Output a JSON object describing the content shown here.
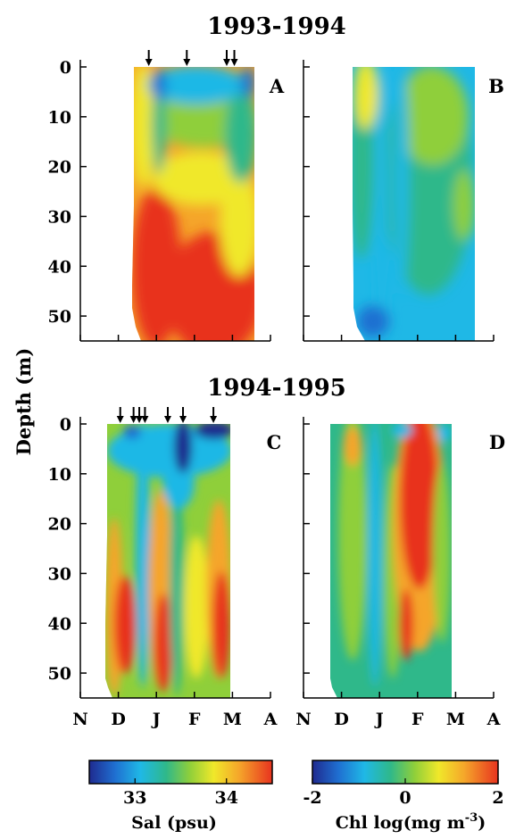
{
  "chart_data": [
    {
      "type": "heatmap",
      "panel_label": "A",
      "title": "1993-1994",
      "variable": "Sal (psu)",
      "ylabel": "Depth (m)",
      "ylim": [
        55,
        0
      ],
      "y_ticks": [
        "0",
        "10",
        "20",
        "30",
        "40",
        "50"
      ],
      "x_categories": [
        "N",
        "D",
        "J",
        "F",
        "M",
        "A"
      ],
      "x_range": [
        "Nov",
        "Apr"
      ],
      "data_extent_x": [
        "early Dec",
        "mid Mar"
      ],
      "sample_arrows_x_month_fraction": [
        1.8,
        2.8,
        3.85,
        4.05
      ],
      "pattern": "Low salinity (~33.0-33.3) near surface Jan-Mar; high salinity (~34.3) at depth Jan-Feb; mid values (~33.6-34.0) intermediate depths",
      "value_range": [
        32.5,
        34.5
      ]
    },
    {
      "type": "heatmap",
      "panel_label": "B",
      "variable": "Chl log(mg m-3)",
      "ylim": [
        55,
        0
      ],
      "x_categories": [
        "N",
        "D",
        "J",
        "F",
        "M",
        "A"
      ],
      "data_extent_x": [
        "early Dec",
        "mid Mar"
      ],
      "pattern": "Mostly low chlorophyll (~ -1 to 0) with slightly higher values (~0.5) in upper 15 m in Dec and Feb-Mar",
      "value_range": [
        -2,
        2
      ]
    },
    {
      "type": "heatmap",
      "panel_label": "C",
      "title": "1994-1995",
      "variable": "Sal (psu)",
      "ylim": [
        55,
        0
      ],
      "x_categories": [
        "N",
        "D",
        "J",
        "F",
        "M",
        "A"
      ],
      "data_extent_x": [
        "late Nov",
        "early Mar"
      ],
      "sample_arrows_x_month_fraction": [
        1.05,
        1.4,
        1.55,
        1.7,
        2.3,
        2.7,
        3.5
      ],
      "pattern": "Freshening (~32.8) near surface Jan-Mar; high salinity (~34.2-34.4) at depth in Dec-Jan and early Mar",
      "value_range": [
        32.5,
        34.5
      ]
    },
    {
      "type": "heatmap",
      "panel_label": "D",
      "variable": "Chl log(mg m-3)",
      "ylim": [
        55,
        0
      ],
      "x_categories": [
        "N",
        "D",
        "J",
        "F",
        "M",
        "A"
      ],
      "data_extent_x": [
        "late Nov",
        "early Mar"
      ],
      "pattern": "High chlorophyll bloom (~1.5-2) in Feb from surface to ~40 m; moderate (~0.5) in Dec; low elsewhere",
      "value_range": [
        -2,
        2
      ]
    }
  ],
  "titles": {
    "top": "1993-1994",
    "bottom": "1994-1995"
  },
  "axis": {
    "ylabel": "Depth (m)",
    "y_ticks": [
      "0",
      "10",
      "20",
      "30",
      "40",
      "50"
    ],
    "x_ticks": [
      "N",
      "D",
      "J",
      "F",
      "M",
      "A"
    ]
  },
  "panels": {
    "a": "A",
    "b": "B",
    "c": "C",
    "d": "D"
  },
  "colorbars": {
    "sal": {
      "label": "Sal (psu)",
      "ticks": [
        "33",
        "34"
      ],
      "range": [
        32.5,
        34.5
      ]
    },
    "chl": {
      "label": "Chl log(mg m",
      "label_sup": "-3",
      "label_end": ")",
      "ticks": [
        "-2",
        "0",
        "2"
      ],
      "range": [
        -2,
        2
      ]
    }
  },
  "colormap": [
    "#1f2a8f",
    "#1f6fd1",
    "#1fb8e6",
    "#2fb88a",
    "#8fcf3a",
    "#f0e82a",
    "#f5a52a",
    "#e8331f"
  ]
}
